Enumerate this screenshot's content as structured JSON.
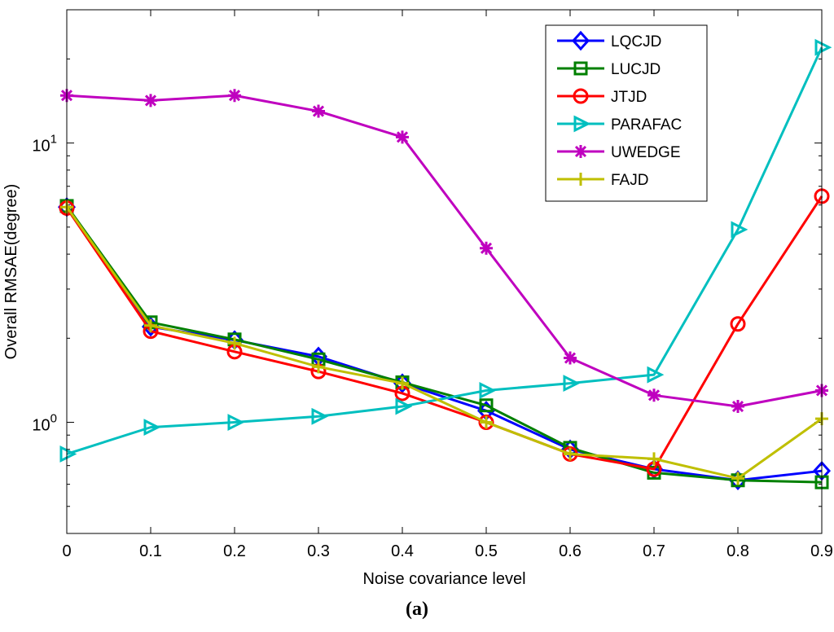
{
  "chart_data": {
    "type": "line",
    "xlabel": "Noise covariance level",
    "ylabel": "Overall RMSAE(degree)",
    "yscale": "log",
    "ylim": [
      0.4,
      30
    ],
    "xlim": [
      0,
      0.9
    ],
    "x": [
      0,
      0.1,
      0.2,
      0.3,
      0.4,
      0.5,
      0.6,
      0.7,
      0.8,
      0.9
    ],
    "x_tick_labels": [
      "0",
      "0.1",
      "0.2",
      "0.3",
      "0.4",
      "0.5",
      "0.6",
      "0.7",
      "0.8",
      "0.9"
    ],
    "y_ticks": [
      {
        "value": 1,
        "base": "10",
        "exp": "0"
      },
      {
        "value": 10,
        "base": "10",
        "exp": "1"
      }
    ],
    "legend_position": "top-right",
    "series": [
      {
        "name": "LQCJD",
        "color": "#0000ff",
        "marker": "diamond",
        "values": [
          5.9,
          2.2,
          1.97,
          1.72,
          1.38,
          1.1,
          0.8,
          0.68,
          0.62,
          0.67
        ]
      },
      {
        "name": "LUCJD",
        "color": "#008000",
        "marker": "square",
        "values": [
          5.95,
          2.28,
          1.98,
          1.68,
          1.39,
          1.15,
          0.81,
          0.66,
          0.62,
          0.61
        ]
      },
      {
        "name": "JTJD",
        "color": "#ff0000",
        "marker": "circle",
        "values": [
          5.85,
          2.12,
          1.79,
          1.52,
          1.27,
          1.0,
          0.77,
          0.68,
          2.25,
          6.45
        ]
      },
      {
        "name": "PARAFAC",
        "color": "#00bfbf",
        "marker": "triangle-right",
        "values": [
          0.77,
          0.96,
          1.0,
          1.05,
          1.14,
          1.3,
          1.38,
          1.48,
          4.9,
          22.0
        ]
      },
      {
        "name": "UWEDGE",
        "color": "#bf00bf",
        "marker": "asterisk",
        "values": [
          14.8,
          14.2,
          14.8,
          13.0,
          10.5,
          4.2,
          1.7,
          1.25,
          1.14,
          1.3
        ]
      },
      {
        "name": "FAJD",
        "color": "#bfbf00",
        "marker": "plus",
        "values": [
          5.9,
          2.22,
          1.92,
          1.58,
          1.38,
          1.0,
          0.77,
          0.74,
          0.63,
          1.03
        ]
      }
    ]
  },
  "caption": {
    "open": "(",
    "letter": "a",
    "close": ")"
  }
}
